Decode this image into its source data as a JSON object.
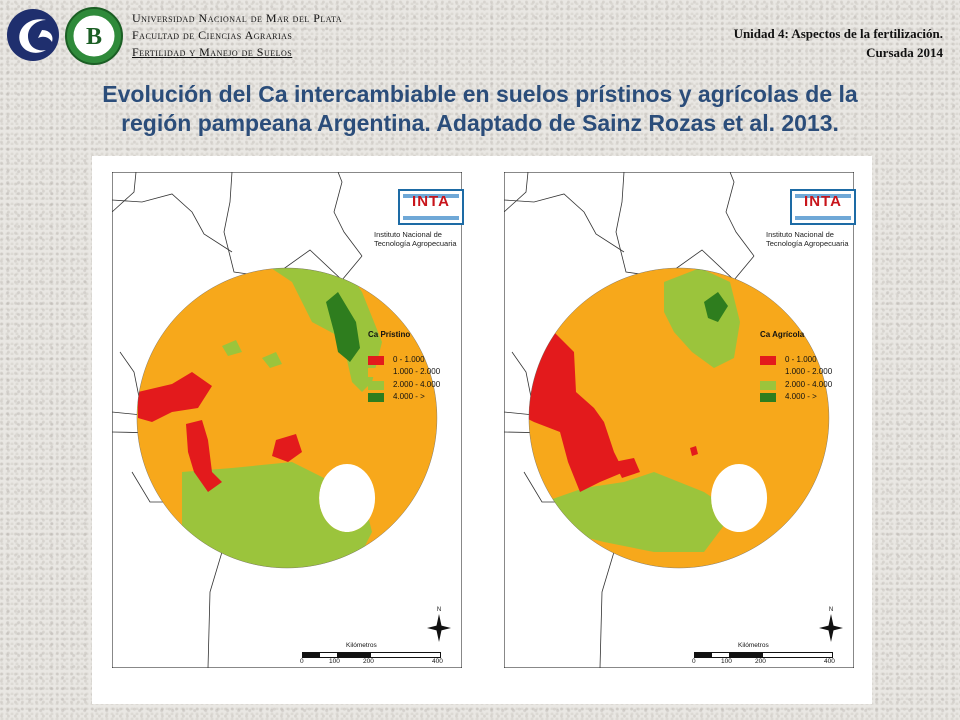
{
  "header": {
    "university_lines": [
      "Universidad Nacional de Mar del Plata",
      "Facultad de Ciencias Agrarias",
      "Fertilidad y Manejo de Suelos"
    ],
    "unit_title": "Unidad 4: Aspectos de la fertilización.",
    "cursada": "Cursada 2014"
  },
  "slide_title_line1": "Evolución del Ca intercambiable en suelos prístinos y agrícolas de la",
  "slide_title_line2": "región pampeana Argentina. Adaptado de Sainz Rozas et al. 2013.",
  "logos": {
    "left_logo": "university-crest-icon",
    "badge_letter": "B"
  },
  "maps": [
    {
      "legend_title": "Ca Prístino",
      "inta_logo_text": "INTA",
      "inta_caption_line1": "Instituto Nacional de",
      "inta_caption_line2": "Tecnología Agropecuaria",
      "scale_title": "Kilómetros",
      "scale_ticks": [
        "0",
        "100",
        "200",
        "400"
      ],
      "north_label": "N"
    },
    {
      "legend_title": "Ca Agrícola",
      "inta_logo_text": "INTA",
      "inta_caption_line1": "Instituto Nacional de",
      "inta_caption_line2": "Tecnología Agropecuaria",
      "scale_title": "Kilómetros",
      "scale_ticks": [
        "0",
        "100",
        "200",
        "400"
      ],
      "north_label": "N"
    }
  ],
  "legend_classes": [
    {
      "label": "0 - 1.000",
      "color": "#e31a1c"
    },
    {
      "label": "1.000 - 2.000",
      "color": "#f7a81b"
    },
    {
      "label": "2.000 - 4.000",
      "color": "#9bc43c"
    },
    {
      "label": "4.000 -    >",
      "color": "#2e7d1e"
    }
  ],
  "colors": {
    "title": "#2b4d7a",
    "class_1": "#e31a1c",
    "class_2": "#f7a81b",
    "class_3": "#9bc43c",
    "class_4": "#2e7d1e"
  }
}
